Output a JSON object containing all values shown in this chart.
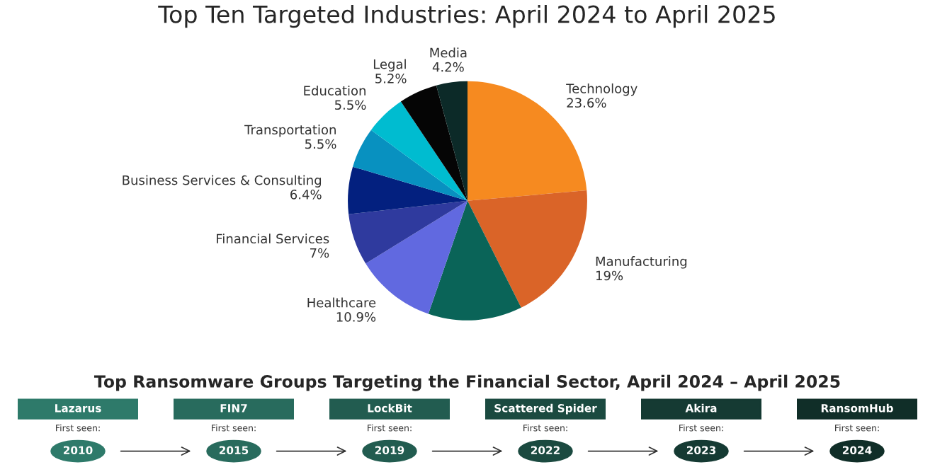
{
  "chart_data": [
    {
      "type": "pie",
      "title": "Top Ten Targeted Industries: April 2024 to April 2025",
      "categories": [
        "Technology",
        "Manufacturing",
        null,
        "Healthcare",
        "Financial Services",
        "Business Services & Consulting",
        "Transportation",
        "Education",
        "Legal",
        "Media"
      ],
      "values": [
        23.6,
        19,
        12.7,
        10.9,
        7,
        6.4,
        5.5,
        5.5,
        5.2,
        4.2
      ],
      "value_labels": [
        "23.6%",
        "19%",
        null,
        "10.9%",
        "7%",
        "6.4%",
        "5.5%",
        "5.5%",
        "5.2%",
        "4.2%"
      ],
      "colors": [
        "#f68a20",
        "#da6428",
        "#0a6458",
        "#6169e0",
        "#2f3a9e",
        "#03207f",
        "#0891c0",
        "#00bcd0",
        "#050505",
        "#0c2a28"
      ],
      "legend": false
    },
    {
      "type": "other",
      "title": "Top Ransomware Groups Targeting the Financial Sector, April 2024 – April 2025",
      "annotations": [
        "Lazarus",
        "First seen:",
        "2010",
        "FIN7",
        "First seen:",
        "2015",
        "LockBit",
        "First seen:",
        "2019",
        "Scattered Spider",
        "First seen:",
        "2022",
        "Akira",
        "First seen:",
        "2023",
        "RansomHub",
        "First seen:",
        "2024"
      ]
    }
  ]
}
